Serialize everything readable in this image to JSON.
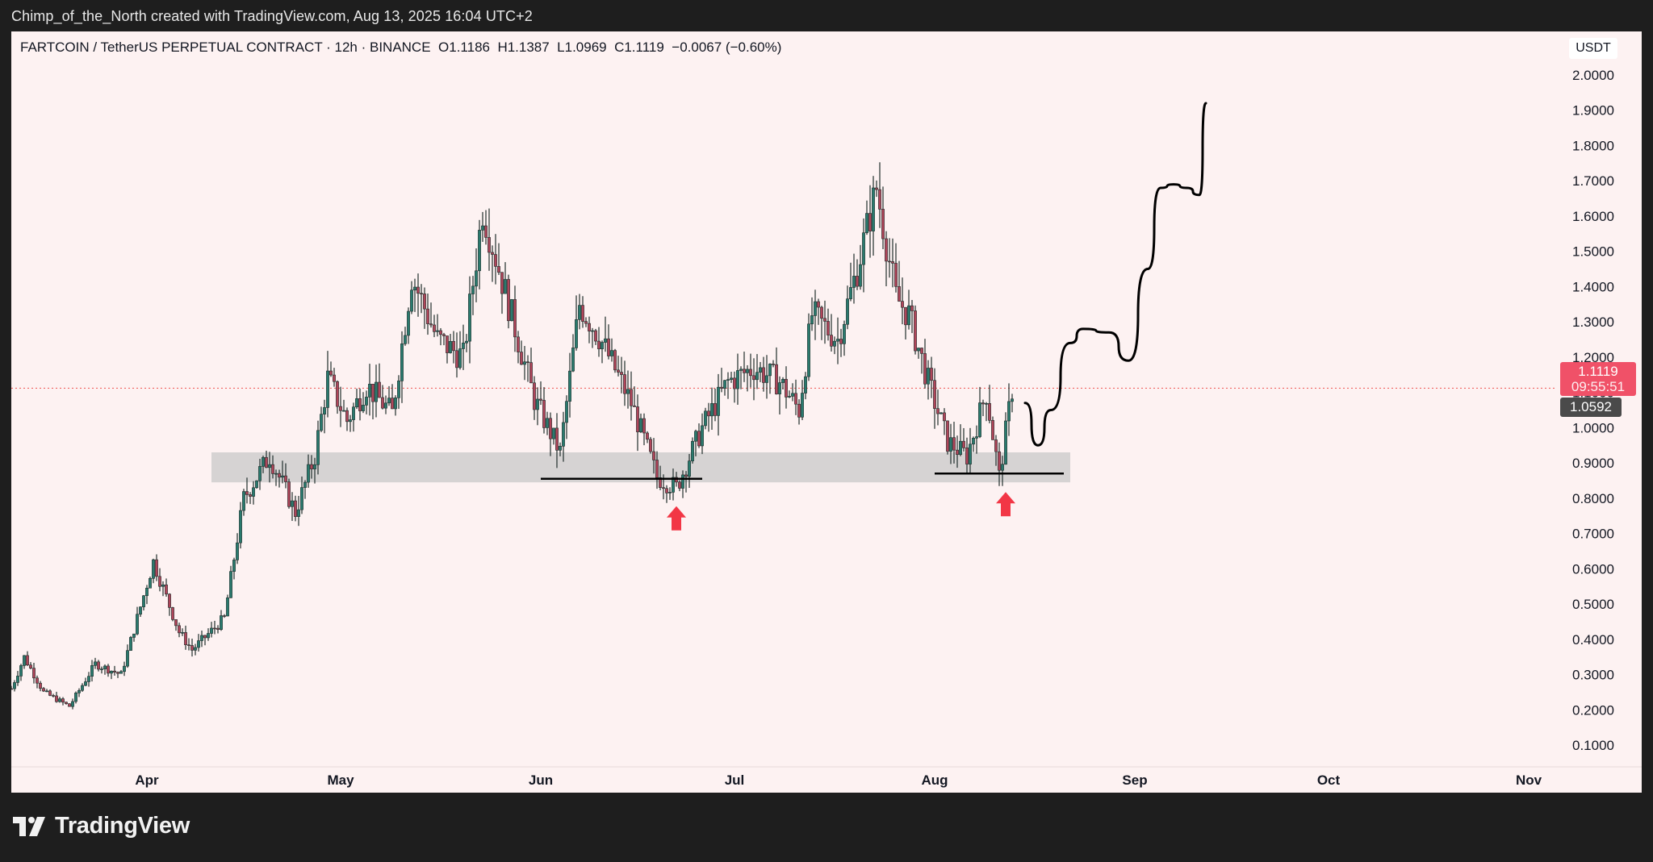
{
  "caption": "Chimp_of_the_North created with TradingView.com, Aug 13, 2025 16:04 UTC+2",
  "legend": {
    "symbol": "FARTCOIN / TetherUS PERPETUAL CONTRACT · 12h · BINANCE",
    "open": "O1.1186",
    "high": "H1.1387",
    "low": "L1.0969",
    "close": "C1.1119",
    "change": "−0.0067 (−0.60%)"
  },
  "price_scale": {
    "currency": "USDT",
    "last_price": "1.1119",
    "countdown": "09:55:51",
    "prev_close": "1.0592"
  },
  "logo_text": "TradingView",
  "colors": {
    "up": "#26a69a",
    "down": "#ef5350",
    "candle_body": "#1f5f57",
    "zone": "#c8c8c8",
    "arrow": "#f23645",
    "background": "#fdf2f2"
  },
  "chart_data": {
    "type": "candlestick",
    "interval": "12h",
    "ylim": [
      0.02,
      2.1
    ],
    "y_ticks": [
      0.1,
      0.2,
      0.3,
      0.4,
      0.5,
      0.6,
      0.7,
      0.8,
      0.9,
      1.0,
      1.1,
      1.2,
      1.3,
      1.4,
      1.5,
      1.6,
      1.7,
      1.8,
      1.9,
      2.0
    ],
    "y_tick_labels": [
      "0.1000",
      "0.2000",
      "0.3000",
      "0.4000",
      "0.5000",
      "0.6000",
      "0.7000",
      "0.8000",
      "0.9000",
      "1.0000",
      "1.1000",
      "1.2000",
      "1.3000",
      "1.4000",
      "1.5000",
      "1.6000",
      "1.7000",
      "1.8000",
      "1.9000",
      "2.0000"
    ],
    "x_month_labels": [
      "Apr",
      "May",
      "Jun",
      "Jul",
      "Aug",
      "Sep",
      "Oct",
      "Nov"
    ],
    "x_month_dates": [
      "2025-04-01",
      "2025-05-01",
      "2025-06-01",
      "2025-07-01",
      "2025-08-01",
      "2025-09-01",
      "2025-10-01",
      "2025-11-01"
    ],
    "x_range": [
      "2025-03-11",
      "2025-11-26"
    ],
    "price_path": [
      [
        "2025-03-11",
        0.26
      ],
      [
        "2025-03-13",
        0.35
      ],
      [
        "2025-03-16",
        0.25
      ],
      [
        "2025-03-20",
        0.21
      ],
      [
        "2025-03-24",
        0.33
      ],
      [
        "2025-03-28",
        0.3
      ],
      [
        "2025-04-02",
        0.62
      ],
      [
        "2025-04-06",
        0.42
      ],
      [
        "2025-04-08",
        0.37
      ],
      [
        "2025-04-13",
        0.46
      ],
      [
        "2025-04-16",
        0.8
      ],
      [
        "2025-04-20",
        0.92
      ],
      [
        "2025-04-24",
        0.76
      ],
      [
        "2025-04-27",
        0.92
      ],
      [
        "2025-04-29",
        1.14
      ],
      [
        "2025-05-02",
        1.02
      ],
      [
        "2025-05-05",
        1.12
      ],
      [
        "2025-05-09",
        1.04
      ],
      [
        "2025-05-12",
        1.43
      ],
      [
        "2025-05-16",
        1.25
      ],
      [
        "2025-05-20",
        1.2
      ],
      [
        "2025-05-23",
        1.62
      ],
      [
        "2025-05-27",
        1.35
      ],
      [
        "2025-05-31",
        1.08
      ],
      [
        "2025-06-04",
        0.93
      ],
      [
        "2025-06-07",
        1.35
      ],
      [
        "2025-06-10",
        1.26
      ],
      [
        "2025-06-15",
        1.07
      ],
      [
        "2025-06-19",
        0.86
      ],
      [
        "2025-06-22",
        0.83
      ],
      [
        "2025-06-26",
        1.0
      ],
      [
        "2025-06-30",
        1.13
      ],
      [
        "2025-07-04",
        1.17
      ],
      [
        "2025-07-08",
        1.13
      ],
      [
        "2025-07-11",
        1.05
      ],
      [
        "2025-07-13",
        1.32
      ],
      [
        "2025-07-17",
        1.25
      ],
      [
        "2025-07-20",
        1.45
      ],
      [
        "2025-07-23",
        1.68
      ],
      [
        "2025-07-26",
        1.37
      ],
      [
        "2025-07-28",
        1.32
      ],
      [
        "2025-07-31",
        1.13
      ],
      [
        "2025-08-03",
        0.96
      ],
      [
        "2025-08-06",
        0.92
      ],
      [
        "2025-08-09",
        1.1
      ],
      [
        "2025-08-11",
        0.86
      ],
      [
        "2025-08-13",
        1.11
      ]
    ],
    "demand_zone": {
      "from": "2025-04-11",
      "to": "2025-08-22",
      "low": 0.845,
      "high": 0.93
    },
    "support_lines": [
      {
        "from": "2025-06-01",
        "to": "2025-06-26",
        "y": 0.855
      },
      {
        "from": "2025-08-01",
        "to": "2025-08-21",
        "y": 0.87
      }
    ],
    "arrows": [
      {
        "x": "2025-06-22",
        "y": 0.75
      },
      {
        "x": "2025-08-12",
        "y": 0.79
      }
    ],
    "projection": [
      [
        "2025-08-15",
        1.07
      ],
      [
        "2025-08-17",
        0.95
      ],
      [
        "2025-08-19",
        1.05
      ],
      [
        "2025-08-22",
        1.24
      ],
      [
        "2025-08-24",
        1.28
      ],
      [
        "2025-08-28",
        1.27
      ],
      [
        "2025-08-31",
        1.19
      ],
      [
        "2025-09-03",
        1.45
      ],
      [
        "2025-09-05",
        1.68
      ],
      [
        "2025-09-07",
        1.69
      ],
      [
        "2025-09-09",
        1.68
      ],
      [
        "2025-09-11",
        1.66
      ],
      [
        "2025-09-12",
        1.92
      ]
    ],
    "last_price_line": 1.1119,
    "grid": false
  }
}
